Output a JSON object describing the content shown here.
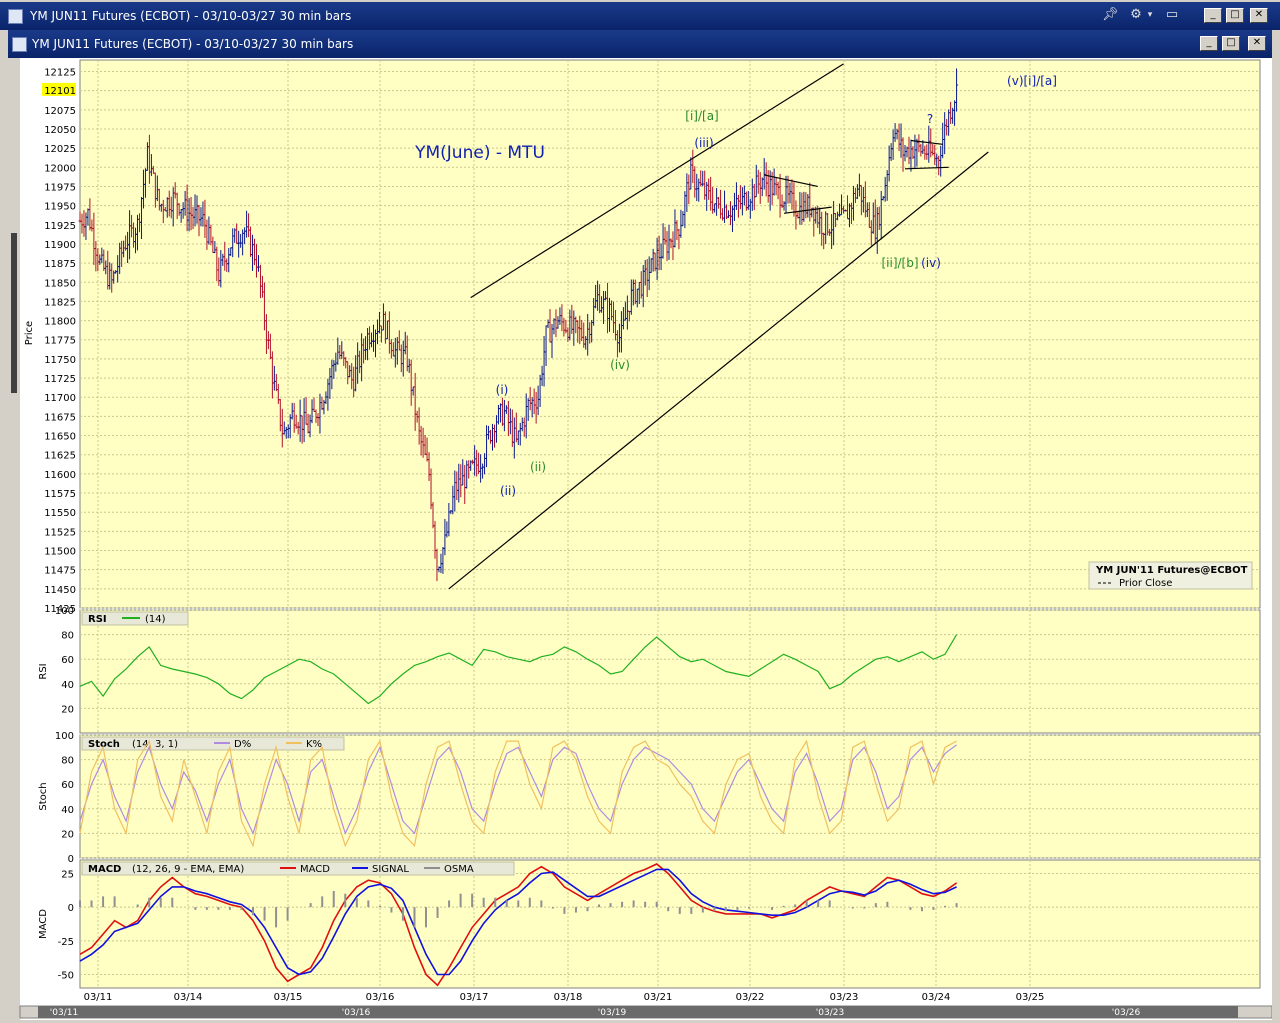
{
  "window": {
    "outer_title": "YM JUN11 Futures (ECBOT) - 03/10-03/27 30 min bars",
    "inner_title": "YM JUN11 Futures (ECBOT) - 03/10-03/27  30 min bars"
  },
  "colors": {
    "panel_bg": "#ffffc4",
    "grid": "#c8c890",
    "up_bar": "#0a1a8c",
    "down_bar": "#b0102a",
    "rsi_line": "#20b020",
    "stoch_d": "#b08ce0",
    "stoch_k": "#f0c060",
    "macd": "#e01010",
    "signal": "#1010e0",
    "osma": "#909090",
    "label_blue": "#1020b0",
    "label_green": "#2a8a2a"
  },
  "annotations": {
    "chart_title": "YM(June) - MTU",
    "wave_labels": [
      {
        "text": "[i]/[a]",
        "color": "green"
      },
      {
        "text": "(iii)",
        "color": "blue"
      },
      {
        "text": "(iv)",
        "color": "green"
      },
      {
        "text": "(i)",
        "color": "blue"
      },
      {
        "text": "(ii)",
        "color": "green"
      },
      {
        "text": "(ii)",
        "color": "blue"
      },
      {
        "text": "[ii]/[b]",
        "color": "green"
      },
      {
        "text": "(iv)",
        "color": "blue"
      },
      {
        "text": "?",
        "color": "blue"
      },
      {
        "text": "(v)[i]/[a]",
        "color": "blue"
      }
    ],
    "legend_title": "YM JUN'11 Futures@ECBOT",
    "legend_item": "Prior Close"
  },
  "chart_data": [
    {
      "type": "ohlc",
      "panel": "price",
      "ylabel": "Price",
      "ylim": [
        11425,
        12140
      ],
      "yticks": [
        12125,
        12100,
        12075,
        12050,
        12025,
        12000,
        11975,
        11950,
        11925,
        11900,
        11875,
        11850,
        11825,
        11800,
        11775,
        11750,
        11725,
        11700,
        11675,
        11650,
        11625,
        11600,
        11575,
        11550,
        11525,
        11500,
        11475,
        11450,
        11425
      ],
      "last_price": "12101",
      "x_labels": [
        "03/11",
        "03/14",
        "03/15",
        "03/16",
        "03/17",
        "03/18",
        "03/21",
        "03/22",
        "03/23",
        "03/24",
        "03/25"
      ],
      "bottom_axis_labels": [
        "'03/11",
        "'03/16",
        "'03/19",
        "'03/23",
        "'03/26"
      ],
      "price_path": [
        {
          "x": 0,
          "y": 11930
        },
        {
          "x": 8,
          "y": 11940
        },
        {
          "x": 20,
          "y": 11875
        },
        {
          "x": 32,
          "y": 11850
        },
        {
          "x": 45,
          "y": 11900
        },
        {
          "x": 58,
          "y": 11925
        },
        {
          "x": 68,
          "y": 12015
        },
        {
          "x": 80,
          "y": 11950
        },
        {
          "x": 95,
          "y": 11960
        },
        {
          "x": 110,
          "y": 11940
        },
        {
          "x": 125,
          "y": 11930
        },
        {
          "x": 140,
          "y": 11860
        },
        {
          "x": 152,
          "y": 11900
        },
        {
          "x": 165,
          "y": 11920
        },
        {
          "x": 178,
          "y": 11880
        },
        {
          "x": 195,
          "y": 11720
        },
        {
          "x": 205,
          "y": 11650
        },
        {
          "x": 215,
          "y": 11680
        },
        {
          "x": 230,
          "y": 11660
        },
        {
          "x": 245,
          "y": 11700
        },
        {
          "x": 260,
          "y": 11760
        },
        {
          "x": 275,
          "y": 11720
        },
        {
          "x": 290,
          "y": 11780
        },
        {
          "x": 305,
          "y": 11800
        },
        {
          "x": 318,
          "y": 11760
        },
        {
          "x": 330,
          "y": 11750
        },
        {
          "x": 342,
          "y": 11650
        },
        {
          "x": 352,
          "y": 11600
        },
        {
          "x": 360,
          "y": 11480
        },
        {
          "x": 368,
          "y": 11510
        },
        {
          "x": 378,
          "y": 11580
        },
        {
          "x": 392,
          "y": 11600
        },
        {
          "x": 405,
          "y": 11620
        },
        {
          "x": 418,
          "y": 11670
        },
        {
          "x": 428,
          "y": 11680
        },
        {
          "x": 440,
          "y": 11640
        },
        {
          "x": 452,
          "y": 11690
        },
        {
          "x": 462,
          "y": 11700
        },
        {
          "x": 470,
          "y": 11780
        },
        {
          "x": 482,
          "y": 11800
        },
        {
          "x": 495,
          "y": 11790
        },
        {
          "x": 510,
          "y": 11780
        },
        {
          "x": 522,
          "y": 11830
        },
        {
          "x": 535,
          "y": 11810
        },
        {
          "x": 545,
          "y": 11775
        },
        {
          "x": 555,
          "y": 11830
        },
        {
          "x": 568,
          "y": 11850
        },
        {
          "x": 580,
          "y": 11880
        },
        {
          "x": 592,
          "y": 11900
        },
        {
          "x": 605,
          "y": 11925
        },
        {
          "x": 615,
          "y": 11990
        },
        {
          "x": 628,
          "y": 11970
        },
        {
          "x": 642,
          "y": 11950
        },
        {
          "x": 658,
          "y": 11945
        },
        {
          "x": 672,
          "y": 11960
        },
        {
          "x": 688,
          "y": 11985
        },
        {
          "x": 700,
          "y": 11970
        },
        {
          "x": 712,
          "y": 11960
        },
        {
          "x": 725,
          "y": 11945
        },
        {
          "x": 738,
          "y": 11950
        },
        {
          "x": 748,
          "y": 11925
        },
        {
          "x": 760,
          "y": 11925
        },
        {
          "x": 772,
          "y": 11935
        },
        {
          "x": 785,
          "y": 11975
        },
        {
          "x": 795,
          "y": 11935
        },
        {
          "x": 803,
          "y": 11920
        },
        {
          "x": 812,
          "y": 11980
        },
        {
          "x": 820,
          "y": 12050
        },
        {
          "x": 830,
          "y": 12020
        },
        {
          "x": 842,
          "y": 12025
        },
        {
          "x": 855,
          "y": 12020
        },
        {
          "x": 865,
          "y": 12010
        },
        {
          "x": 874,
          "y": 12060
        },
        {
          "x": 884,
          "y": 12101
        }
      ],
      "trend_lines": [
        {
          "name": "upper-channel",
          "x1": 394,
          "y1": 11830,
          "x2": 770,
          "y2": 12135
        },
        {
          "name": "lower-channel",
          "x1": 372,
          "y1": 11450,
          "x2": 916,
          "y2": 12020
        },
        {
          "name": "triangle-top",
          "x1": 690,
          "y1": 11990,
          "x2": 744,
          "y2": 11975
        },
        {
          "name": "triangle-bottom",
          "x1": 710,
          "y1": 11940,
          "x2": 758,
          "y2": 11948
        },
        {
          "name": "flag-top",
          "x1": 838,
          "y1": 12035,
          "x2": 870,
          "y2": 12030
        },
        {
          "name": "flag-bottom",
          "x1": 832,
          "y1": 11998,
          "x2": 876,
          "y2": 12000
        }
      ]
    },
    {
      "type": "line",
      "panel": "rsi",
      "title": "RSI",
      "param": "(14)",
      "ylabel": "RSI",
      "ylim": [
        0,
        100
      ],
      "yticks": [
        100,
        80,
        60,
        40,
        20
      ],
      "series": [
        {
          "name": "RSI",
          "values": [
            38,
            42,
            30,
            44,
            52,
            62,
            70,
            55,
            52,
            50,
            48,
            45,
            40,
            32,
            28,
            35,
            45,
            50,
            55,
            60,
            58,
            52,
            48,
            40,
            32,
            24,
            30,
            40,
            48,
            55,
            58,
            62,
            65,
            60,
            55,
            68,
            66,
            62,
            60,
            58,
            62,
            64,
            70,
            66,
            60,
            55,
            48,
            50,
            60,
            70,
            78,
            70,
            62,
            58,
            60,
            55,
            50,
            48,
            46,
            52,
            58,
            64,
            60,
            55,
            50,
            36,
            40,
            48,
            54,
            60,
            62,
            58,
            62,
            66,
            60,
            64,
            80
          ]
        }
      ]
    },
    {
      "type": "line",
      "panel": "stoch",
      "title": "Stoch",
      "param": "(14, 3, 1)",
      "ylabel": "Stoch",
      "ylim": [
        0,
        100
      ],
      "yticks": [
        100,
        80,
        60,
        40,
        20,
        0
      ],
      "series": [
        {
          "name": "D%",
          "values": [
            30,
            60,
            80,
            50,
            30,
            70,
            90,
            60,
            40,
            70,
            55,
            30,
            60,
            80,
            40,
            20,
            50,
            80,
            60,
            30,
            70,
            80,
            50,
            20,
            40,
            70,
            90,
            60,
            30,
            20,
            50,
            80,
            90,
            70,
            40,
            30,
            60,
            85,
            90,
            70,
            50,
            80,
            90,
            85,
            60,
            40,
            30,
            60,
            80,
            90,
            85,
            80,
            70,
            60,
            40,
            30,
            50,
            70,
            80,
            60,
            40,
            30,
            70,
            85,
            60,
            30,
            40,
            80,
            90,
            70,
            40,
            50,
            80,
            90,
            70,
            85,
            92
          ]
        },
        {
          "name": "K%",
          "values": [
            20,
            70,
            90,
            40,
            20,
            80,
            95,
            50,
            30,
            80,
            50,
            20,
            70,
            90,
            30,
            10,
            60,
            90,
            50,
            20,
            80,
            90,
            40,
            10,
            30,
            80,
            95,
            50,
            20,
            10,
            60,
            90,
            95,
            60,
            30,
            20,
            70,
            95,
            95,
            60,
            40,
            90,
            95,
            80,
            50,
            30,
            20,
            70,
            90,
            95,
            80,
            75,
            60,
            50,
            30,
            20,
            60,
            80,
            85,
            50,
            30,
            20,
            80,
            95,
            50,
            20,
            30,
            90,
            95,
            60,
            30,
            40,
            90,
            95,
            60,
            90,
            95
          ]
        }
      ]
    },
    {
      "type": "line",
      "panel": "macd",
      "title": "MACD",
      "param": "(12, 26, 9 - EMA, EMA)",
      "ylabel": "MACD",
      "ylim": [
        -60,
        35
      ],
      "yticks": [
        25,
        0,
        -25,
        -50
      ],
      "series": [
        {
          "name": "MACD",
          "values": [
            -35,
            -30,
            -20,
            -10,
            -15,
            -10,
            5,
            15,
            22,
            15,
            10,
            8,
            5,
            2,
            0,
            -10,
            -25,
            -45,
            -55,
            -50,
            -45,
            -30,
            -10,
            5,
            15,
            20,
            18,
            10,
            -5,
            -30,
            -50,
            -58,
            -45,
            -30,
            -15,
            -5,
            5,
            10,
            15,
            25,
            30,
            25,
            15,
            10,
            5,
            10,
            15,
            20,
            25,
            28,
            32,
            25,
            15,
            5,
            0,
            -3,
            -5,
            -5,
            -5,
            -5,
            -8,
            -5,
            -2,
            5,
            10,
            15,
            12,
            10,
            8,
            15,
            22,
            20,
            15,
            10,
            8,
            12,
            18
          ]
        },
        {
          "name": "SIGNAL",
          "values": [
            -40,
            -35,
            -28,
            -18,
            -15,
            -12,
            -2,
            8,
            15,
            15,
            12,
            10,
            7,
            4,
            2,
            -4,
            -15,
            -30,
            -45,
            -50,
            -48,
            -38,
            -22,
            -5,
            8,
            15,
            17,
            14,
            5,
            -15,
            -35,
            -50,
            -50,
            -40,
            -25,
            -12,
            -2,
            5,
            10,
            18,
            25,
            26,
            20,
            14,
            8,
            8,
            12,
            16,
            20,
            24,
            28,
            28,
            20,
            10,
            4,
            0,
            -2,
            -3,
            -4,
            -5,
            -6,
            -6,
            -4,
            0,
            5,
            10,
            12,
            11,
            9,
            12,
            18,
            20,
            17,
            13,
            10,
            11,
            15
          ]
        },
        {
          "name": "OSMA",
          "values": [
            5,
            5,
            8,
            8,
            0,
            2,
            7,
            7,
            7,
            0,
            -2,
            -2,
            -2,
            -2,
            -2,
            -6,
            -10,
            -15,
            -10,
            0,
            3,
            8,
            12,
            10,
            7,
            5,
            1,
            -4,
            -10,
            -15,
            -15,
            -8,
            5,
            10,
            10,
            7,
            7,
            5,
            5,
            7,
            5,
            -1,
            -5,
            -4,
            -3,
            2,
            3,
            4,
            5,
            4,
            4,
            -3,
            -5,
            -5,
            -4,
            -3,
            -3,
            -2,
            -1,
            0,
            -2,
            1,
            2,
            5,
            5,
            5,
            0,
            -1,
            -1,
            3,
            4,
            0,
            -2,
            -3,
            -2,
            1,
            3
          ]
        }
      ]
    }
  ]
}
